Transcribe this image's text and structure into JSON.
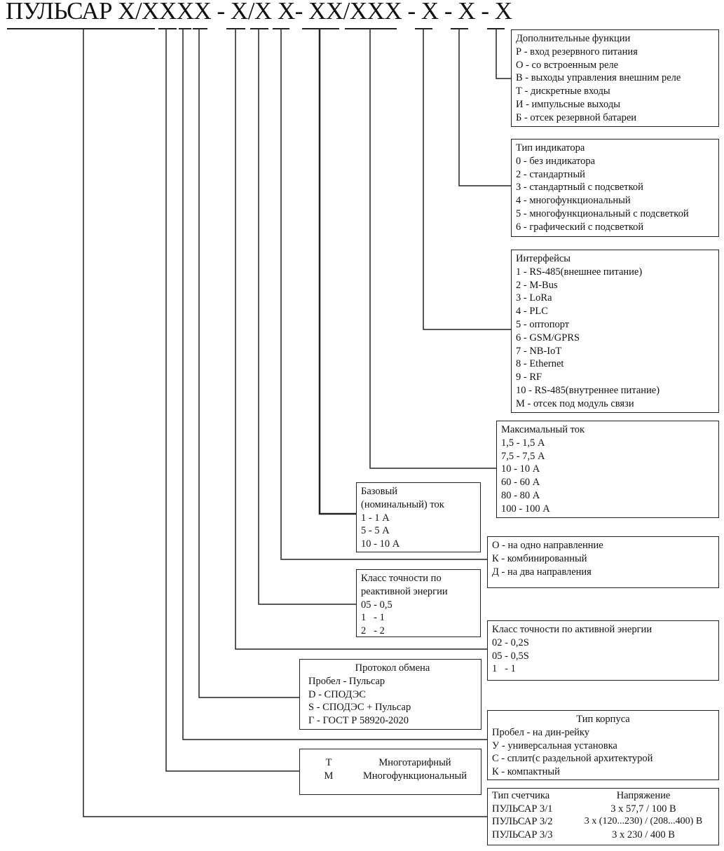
{
  "title": "ПУЛЬСАР X/XXXX - X/X X- XX/XXX - X - X - X",
  "boxes": {
    "extra": {
      "heading": "Дополнительные функции",
      "items": [
        "Р - вход резервного питания",
        "О - со встроенным реле",
        "В - выходы управления внешним реле",
        "Т - дискретные входы",
        "И - импульсные выходы",
        "Б - отсек резервной батареи"
      ]
    },
    "indicator": {
      "heading": "Тип индикатора",
      "items": [
        "0 - без индикатора",
        "2 - стандартный",
        "3 - стандартный с подсветкой",
        "4 - многофункциональный",
        "5 - многофункциональный с подсветкой",
        "6 - графический с подсветкой"
      ]
    },
    "interfaces": {
      "heading": "Интерфейсы",
      "items": [
        "1 - RS-485(внешнее питание)",
        "2 - M-Bus",
        "3 - LoRa",
        "4 - PLC",
        "5 - оптопорт",
        "6 - GSM/GPRS",
        "7 - NB-IoT",
        "8 - Ethernet",
        "9 - RF",
        "10 - RS-485(внутреннее питание)",
        "М - отсек под модуль связи"
      ]
    },
    "max_current": {
      "heading": "Максимальный ток",
      "items": [
        "1,5 - 1,5 А",
        "7,5 - 7,5 А",
        "10 - 10 А",
        "60 - 60 А",
        "80 - 80 А",
        "100 - 100 А"
      ]
    },
    "base_current": {
      "heading": "Базовый",
      "heading2": "(номинальный) ток",
      "items": [
        "1 - 1 А",
        "5 - 5 А",
        "10 - 10 А"
      ]
    },
    "direction": {
      "items": [
        "О - на одно направленние",
        "К - комбинированный",
        "Д - на два направления"
      ]
    },
    "reactive": {
      "heading": "Класс точности по",
      "heading2": "реактивной энергии",
      "items": [
        "05 - 0,5",
        "1   - 1",
        "2   - 2"
      ]
    },
    "active": {
      "heading": "Класс точности по активной энергии",
      "items": [
        "02 - 0,2S",
        "05 - 0,5S",
        "1   - 1"
      ]
    },
    "protocol": {
      "heading": "Протокол обмена",
      "items": [
        "Пробел - Пульсар",
        "D - СПОДЭС",
        "S - СПОДЭС + Пульсар",
        "Г - ГОСТ Р 58920-2020"
      ]
    },
    "case": {
      "heading": "Тип корпуса",
      "items": [
        "Пробел - на дин-рейку",
        "У - универсальная установка",
        "С - сплит(с раздельной архитектурой",
        "К - компактный"
      ]
    },
    "tariff": {
      "rows": [
        {
          "code": "Т",
          "label": "Многотарифный"
        },
        {
          "code": "М",
          "label": "Многофункциональный"
        }
      ]
    },
    "meter": {
      "col1": "Тип счетчика",
      "col2": "Напряжение",
      "rows": [
        {
          "type": "ПУЛЬСАР 3/1",
          "voltage": "3 x 57,7 / 100 В"
        },
        {
          "type": "ПУЛЬСАР 3/2",
          "voltage": "3 x (120...230) / (208...400) В"
        },
        {
          "type": "ПУЛЬСАР 3/3",
          "voltage": "3 x 230 / 400 В"
        }
      ]
    }
  }
}
